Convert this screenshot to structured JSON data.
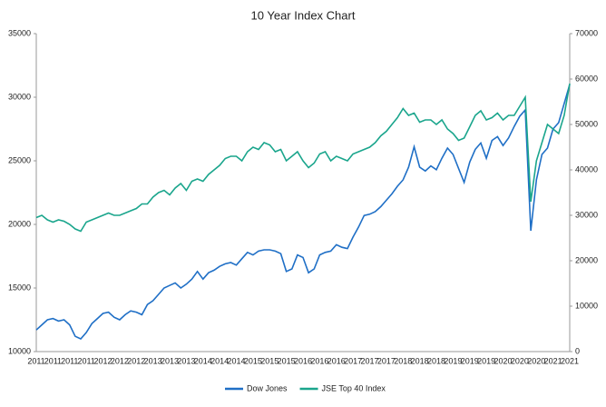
{
  "chart_data": {
    "type": "line",
    "title": "10 Year Index Chart",
    "categories": [
      "2011",
      null,
      null,
      "2011",
      null,
      null,
      "2011",
      null,
      null,
      "2011",
      null,
      null,
      "2012",
      null,
      null,
      "2012",
      null,
      null,
      "2012",
      null,
      null,
      "2013",
      null,
      null,
      "2013",
      null,
      null,
      "2013",
      null,
      null,
      "2014",
      null,
      null,
      "2014",
      null,
      null,
      "2014",
      null,
      null,
      "2015",
      null,
      null,
      "2015",
      null,
      null,
      "2015",
      null,
      null,
      "2016",
      null,
      null,
      "2016",
      null,
      null,
      "2016",
      null,
      null,
      "2017",
      null,
      null,
      "2017",
      null,
      null,
      "2017",
      null,
      null,
      "2018",
      null,
      null,
      "2018",
      null,
      null,
      "2018",
      null,
      null,
      "2019",
      null,
      null,
      "2019",
      null,
      null,
      "2019",
      null,
      null,
      "2020",
      null,
      null,
      "2020",
      null,
      null,
      "2020",
      null,
      null,
      "2021",
      null,
      null,
      "2021"
    ],
    "series": [
      {
        "name": "Dow Jones",
        "color": "#1f6fc6",
        "axis": "y",
        "values": [
          11700,
          12100,
          12500,
          12600,
          12400,
          12500,
          12100,
          11200,
          11000,
          11500,
          12200,
          12600,
          13000,
          13100,
          12700,
          12500,
          12900,
          13200,
          13100,
          12900,
          13700,
          14000,
          14500,
          15000,
          15200,
          15400,
          15000,
          15300,
          15700,
          16300,
          15700,
          16200,
          16400,
          16700,
          16900,
          17000,
          16800,
          17300,
          17800,
          17600,
          17900,
          18000,
          18000,
          17900,
          17700,
          16300,
          16500,
          17600,
          17400,
          16200,
          16500,
          17600,
          17800,
          17900,
          18400,
          18200,
          18100,
          19000,
          19800,
          20700,
          20800,
          21000,
          21400,
          21900,
          22400,
          23000,
          23500,
          24500,
          26100,
          24500,
          24200,
          24600,
          24300,
          25200,
          26000,
          25500,
          24400,
          23300,
          24900,
          25900,
          26400,
          25200,
          26600,
          26900,
          26200,
          26800,
          27700,
          28500,
          29000,
          19500,
          23500,
          25500,
          26000,
          27500,
          28000,
          29500,
          31000
        ]
      },
      {
        "name": "JSE Top 40 Index",
        "color": "#1aa58c",
        "axis": "y2",
        "values": [
          29500,
          30000,
          29000,
          28500,
          29000,
          28700,
          28000,
          27000,
          26500,
          28500,
          29000,
          29500,
          30000,
          30500,
          30000,
          30000,
          30500,
          31000,
          31500,
          32500,
          32500,
          34000,
          35000,
          35500,
          34500,
          36000,
          37000,
          35500,
          37500,
          38000,
          37500,
          39000,
          40000,
          41000,
          42500,
          43000,
          43000,
          42000,
          44000,
          45000,
          44500,
          46000,
          45500,
          44000,
          44500,
          42000,
          43000,
          44000,
          42000,
          40500,
          41500,
          43500,
          44000,
          42000,
          43000,
          42500,
          42000,
          43500,
          44000,
          44500,
          45000,
          46000,
          47500,
          48500,
          50000,
          51500,
          53500,
          52000,
          52500,
          50500,
          51000,
          51000,
          50000,
          51000,
          49000,
          48000,
          46500,
          47000,
          49500,
          52000,
          53000,
          51000,
          51500,
          52500,
          51000,
          52000,
          52000,
          54000,
          56000,
          33000,
          42000,
          46000,
          50000,
          49000,
          48000,
          52000,
          59000
        ]
      }
    ],
    "ylim": [
      10000,
      35000
    ],
    "yticks": [
      10000,
      15000,
      20000,
      25000,
      30000,
      35000
    ],
    "y2lim": [
      0,
      70000
    ],
    "y2ticks": [
      0,
      10000,
      20000,
      30000,
      40000,
      50000,
      60000,
      70000
    ],
    "legend": "bottom"
  }
}
